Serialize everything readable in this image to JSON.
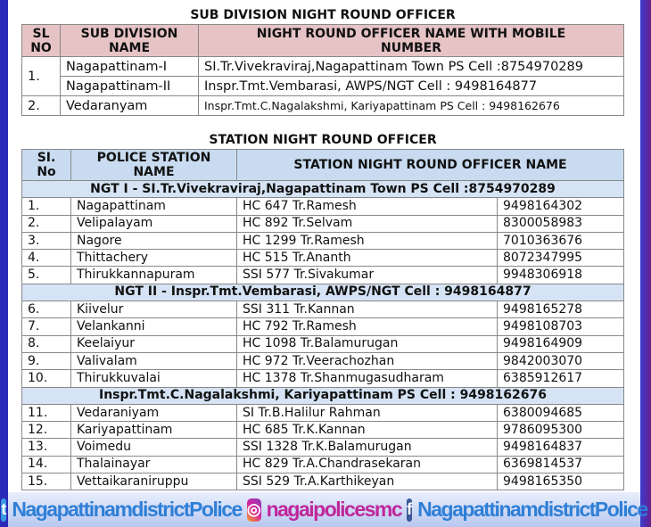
{
  "subdivision": {
    "title": "SUB DIVISION NIGHT ROUND OFFICER",
    "headers": [
      "SL NO",
      "SUB DIVISION NAME",
      "NIGHT ROUND OFFICER NAME WITH MOBILE NUMBER"
    ],
    "rows": [
      {
        "sl": "1.",
        "name": "Nagapattinam-I",
        "officer": "SI.Tr.Vivekraviraj,Nagapattinam Town PS Cell :8754970289"
      },
      {
        "sl": "",
        "name": "Nagapattinam-II",
        "officer": "Inspr.Tmt.Vembarasi, AWPS/NGT Cell : 9498164877"
      },
      {
        "sl": "2.",
        "name": "Vedaranyam",
        "officer": "Inspr.Tmt.C.Nagalakshmi, Kariyapattinam PS Cell : 9498162676"
      }
    ]
  },
  "station": {
    "title": "STATION NIGHT ROUND OFFICER",
    "headers": [
      "SI. No",
      "POLICE STATION NAME",
      "STATION NIGHT ROUND OFFICER NAME"
    ],
    "groups": [
      {
        "label": "NGT I - SI.Tr.Vivekraviraj,Nagapattinam Town PS Cell :8754970289",
        "rows": [
          [
            "1.",
            "Nagapattinam",
            "HC 647 Tr.Ramesh",
            "9498164302"
          ],
          [
            "2.",
            "Velipalayam",
            "HC 892 Tr.Selvam",
            "8300058983"
          ],
          [
            "3.",
            "Nagore",
            "HC 1299 Tr.Ramesh",
            "7010363676"
          ],
          [
            "4.",
            "Thittachery",
            "HC 515 Tr.Ananth",
            "8072347995"
          ],
          [
            "5.",
            "Thirukkannapuram",
            "SSI 577 Tr.Sivakumar",
            "9948306918"
          ]
        ]
      },
      {
        "label": "NGT II - Inspr.Tmt.Vembarasi, AWPS/NGT Cell : 9498164877",
        "rows": [
          [
            "6.",
            "Kiivelur",
            "SSI 311 Tr.Kannan",
            "9498165278"
          ],
          [
            "7.",
            "Velankanni",
            "HC 792 Tr.Ramesh",
            "9498108703"
          ],
          [
            "8.",
            "Keelaiyur",
            "HC 1098 Tr.Balamurugan",
            "9498164909"
          ],
          [
            "9.",
            "Valivalam",
            "HC 972 Tr.Veerachozhan",
            "9842003070"
          ],
          [
            "10.",
            "Thirukkuvalai",
            "HC 1378 Tr.Shanmugasudharam",
            "6385912617"
          ]
        ]
      },
      {
        "label": "Inspr.Tmt.C.Nagalakshmi, Kariyapattinam PS Cell : 9498162676",
        "rows": [
          [
            "11.",
            "Vedaraniyam",
            "SI Tr.B.Halilur Rahman",
            "6380094685"
          ],
          [
            "12.",
            "Kariyapattinam",
            "HC 685 Tr.K.Kannan",
            "9786095300"
          ],
          [
            "13.",
            "Voimedu",
            "SSI 1328 Tr.K.Balamurugan",
            "9498164837"
          ],
          [
            "14.",
            "Thalainayar",
            "HC 829 Tr.A.Chandrasekaran",
            "6369814537"
          ],
          [
            "15.",
            "Vettaikaraniruppu",
            "SSI 529 Tr.A.Karthikeyan",
            "9498165350"
          ]
        ]
      }
    ]
  },
  "footer": {
    "twitter": "NagapattinamdistrictPolice",
    "instagram": "nagaipolicesmc",
    "facebook": "NagapattinamdistrictPolice",
    "icons": [
      "twitter-icon",
      "instagram-icon",
      "facebook-icon"
    ]
  }
}
